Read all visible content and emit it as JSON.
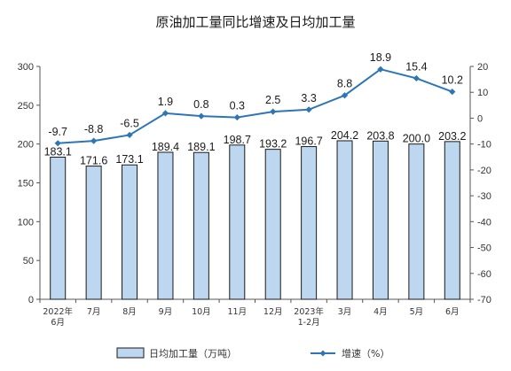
{
  "chart_data": {
    "type": "bar",
    "title": "原油加工量同比增速及日均加工量",
    "categories": [
      [
        "2022年",
        "6月"
      ],
      [
        "7月"
      ],
      [
        "8月"
      ],
      [
        "9月"
      ],
      [
        "10月"
      ],
      [
        "11月"
      ],
      [
        "12月"
      ],
      [
        "2023年",
        "1-2月"
      ],
      [
        "3月"
      ],
      [
        "4月"
      ],
      [
        "5月"
      ],
      [
        "6月"
      ]
    ],
    "series": [
      {
        "name": "日均加工量（万吨）",
        "type": "bar",
        "axis": "left",
        "color": "#bcd7ef",
        "values": [
          183.1,
          171.6,
          173.1,
          189.4,
          189.1,
          198.7,
          193.2,
          196.7,
          204.2,
          203.8,
          200.0,
          203.2
        ],
        "labels": [
          "183.1",
          "171.6",
          "173.1",
          "189.4",
          "189.1",
          "198.7",
          "193.2",
          "196.7",
          "204.2",
          "203.8",
          "200.0",
          "203.2"
        ]
      },
      {
        "name": "增速（%）",
        "type": "line",
        "axis": "right",
        "color": "#2e75b6",
        "values": [
          -9.7,
          -8.8,
          -6.5,
          1.9,
          0.8,
          0.3,
          2.5,
          3.3,
          8.8,
          18.9,
          15.4,
          10.2
        ],
        "labels": [
          "-9.7",
          "-8.8",
          "-6.5",
          "1.9",
          "0.8",
          "0.3",
          "2.5",
          "3.3",
          "8.8",
          "18.9",
          "15.4",
          "10.2"
        ]
      }
    ],
    "y_left": {
      "ylim": [
        0,
        300
      ],
      "ticks": [
        "0",
        "50",
        "100",
        "150",
        "200",
        "250",
        "300"
      ]
    },
    "y_right": {
      "ylim": [
        -70,
        20
      ],
      "ticks": [
        "-70",
        "-60",
        "-50",
        "-40",
        "-30",
        "-20",
        "-10",
        "0",
        "10",
        "20"
      ]
    },
    "grid": false,
    "legend": "bottom"
  }
}
